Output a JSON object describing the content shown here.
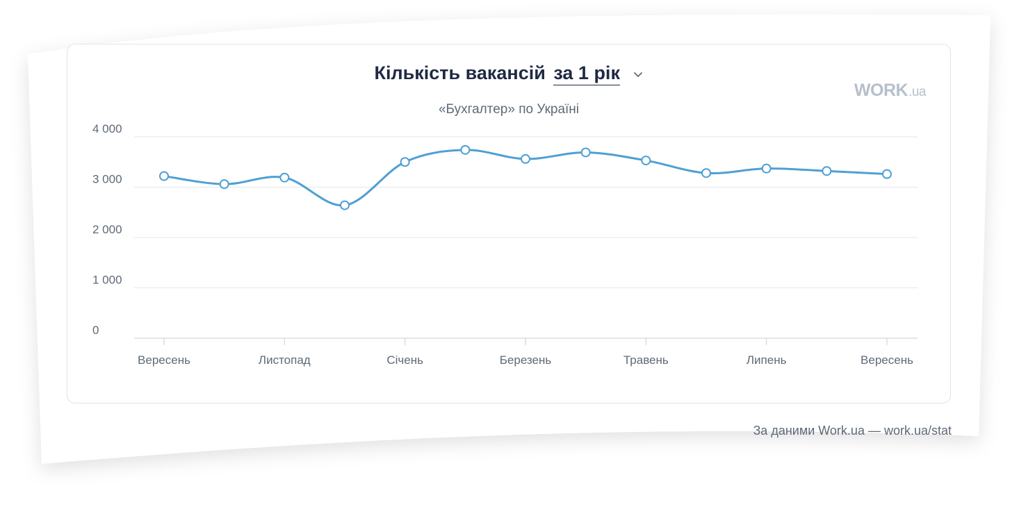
{
  "header": {
    "title": "Кількість вакансій",
    "period_label": "за 1 рік",
    "dropdown_icon": "chevron-down-icon",
    "subtitle": "«Бухгалтер» по Україні",
    "logo_main": "WORK",
    "logo_suffix": ".ua"
  },
  "footer": {
    "credit": "За даними Work.ua — work.ua/stat"
  },
  "colors": {
    "line": "#4f9fd4",
    "grid": "#e3e6ea",
    "axis": "#c9ced6",
    "text": "#5f6977",
    "title": "#1f2a44"
  },
  "chart_data": {
    "type": "line",
    "title": "Кількість вакансій за 1 рік",
    "subtitle": "«Бухгалтер» по Україні",
    "xlabel": "",
    "ylabel": "",
    "ylim": [
      0,
      4000
    ],
    "y_ticks": [
      0,
      1000,
      2000,
      3000,
      4000
    ],
    "y_tick_labels": [
      "0",
      "1 000",
      "2 000",
      "3 000",
      "4 000"
    ],
    "grid": true,
    "legend": "none",
    "x_tick_labels": [
      "Вересень",
      "",
      "Листопад",
      "",
      "Січень",
      "",
      "Березень",
      "",
      "Травень",
      "",
      "Липень",
      "",
      "Вересень"
    ],
    "series": [
      {
        "values": [
          3220,
          3060,
          3190,
          2640,
          3500,
          3740,
          3560,
          3690,
          3530,
          3280,
          3370,
          3320,
          3260
        ]
      }
    ]
  }
}
